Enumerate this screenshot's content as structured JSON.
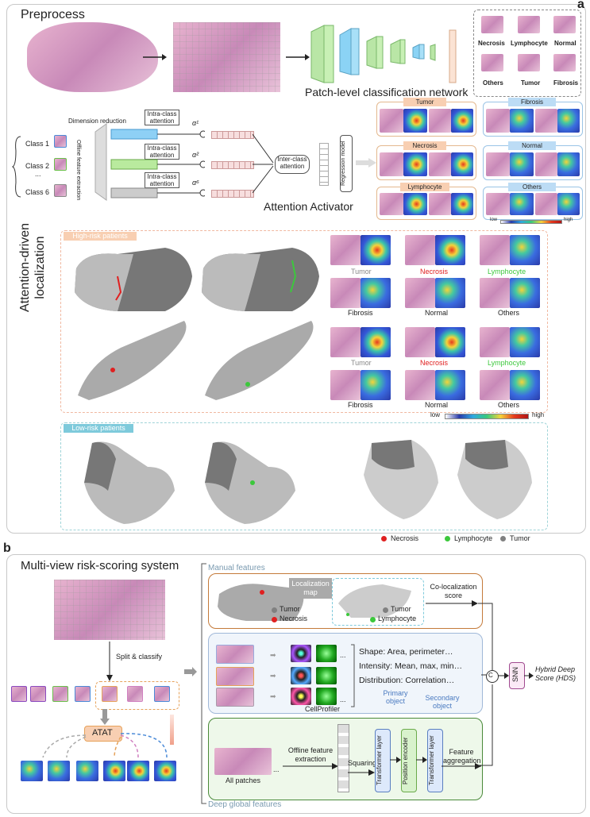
{
  "panel_a": {
    "label": "a",
    "preprocess_title": "Preprocess",
    "network_label": "Patch-level classification network",
    "classes_top": [
      "Necrosis",
      "Lymphocyte",
      "Normal",
      "Others",
      "Tumor",
      "Fibrosis"
    ],
    "class_inputs": [
      "Class 1",
      "Class 2",
      "Class 6"
    ],
    "ellipsis": "...",
    "offline_label": "Offline feature extraction",
    "dimension_reduction": "Dimension reduction",
    "intra_class": "Intra-class attention",
    "alphas": [
      "α¹",
      "α²",
      "α⁶"
    ],
    "inter_class": "Inter-class attention",
    "regression": "Regression model",
    "attention_activator": "Attention Activator",
    "heat_groups": [
      "Tumor",
      "Fibrosis",
      "Necrosis",
      "Normal",
      "Lymphocyte",
      "Others"
    ],
    "scale_low": "low",
    "scale_high": "high",
    "localization_title": "Attention-driven localization",
    "high_risk": "High-risk patients",
    "low_risk": "Low-risk patients",
    "grid_row1": [
      "Tumor",
      "Necrosis",
      "Lymphocyte"
    ],
    "grid_row2": [
      "Fibrosis",
      "Normal",
      "Others"
    ],
    "legend": [
      "Necrosis",
      "Lymphocyte",
      "Tumor"
    ],
    "colors": {
      "necrosis": "#e02020",
      "lymphocyte": "#3cc83c",
      "tumor": "#808080"
    }
  },
  "panel_b": {
    "label": "b",
    "title": "Multi-view risk-scoring system",
    "split_classify": "Split & classify",
    "atat": "ATAT",
    "manual_features": "Manual features",
    "localization_map": "Localization map",
    "tumor": "Tumor",
    "necrosis": "Necrosis",
    "lymphocyte": "Lymphocyte",
    "co_localization": "Co-localization score",
    "shape": "Shape: Area, perimeter…",
    "intensity": "Intensity: Mean, max, min…",
    "distribution": "Distribution: Correlation…",
    "primary": "Primary object",
    "secondary": "Secondary object",
    "cellprofiler": "CellProfiler",
    "all_patches": "All patches",
    "offline_feature": "Offline feature extraction",
    "squaring": "Squaring",
    "transformer": "Transformer layer",
    "position": "Position encoder",
    "feature_agg": "Feature aggregation",
    "deep_global": "Deep global features",
    "concat": "C",
    "snn": "SNN",
    "hds": "Hybrid Deep Score (HDS)"
  }
}
